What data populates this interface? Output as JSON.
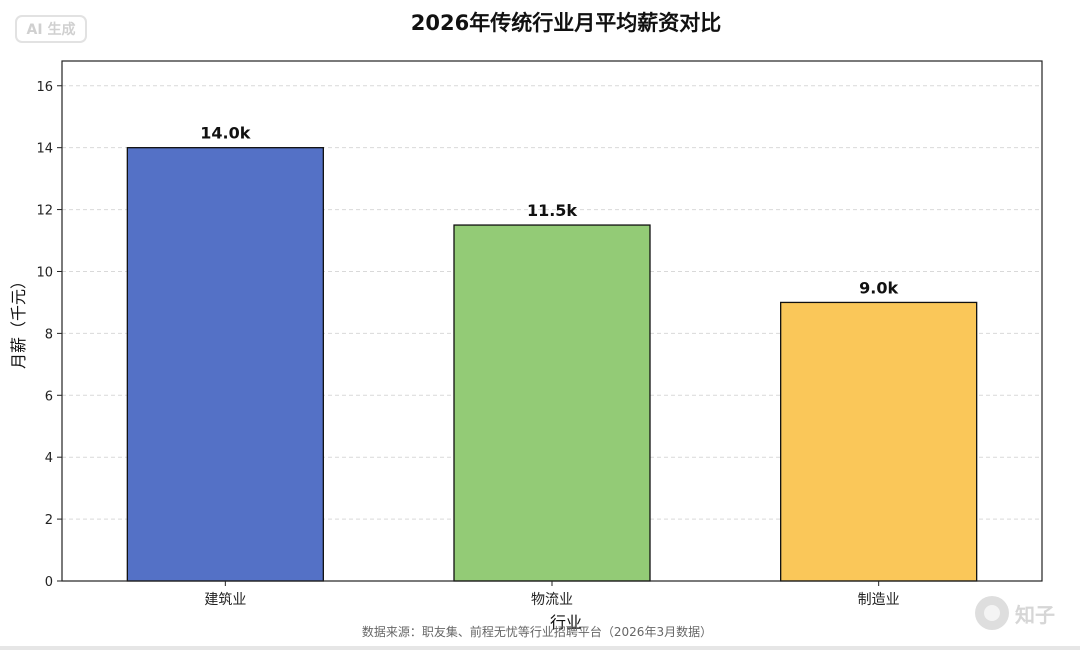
{
  "badge": {
    "text": "AI 生成"
  },
  "watermark": {
    "text": "知子"
  },
  "source_note": "数据来源：职友集、前程无忧等行业招聘平台（2026年3月数据）",
  "chart_data": {
    "type": "bar",
    "title": "2026年传统行业月平均薪资对比",
    "xlabel": "行业",
    "ylabel": "月薪（千元）",
    "categories": [
      "建筑业",
      "物流业",
      "制造业"
    ],
    "values": [
      14.0,
      11.5,
      9.0
    ],
    "value_labels": [
      "14.0k",
      "11.5k",
      "9.0k"
    ],
    "colors": [
      "#5471c6",
      "#93cb76",
      "#fac759"
    ],
    "ylim": [
      0,
      16.8
    ],
    "yticks": [
      0,
      2,
      4,
      6,
      8,
      10,
      12,
      14,
      16
    ],
    "grid": true,
    "grid_axis": "y"
  }
}
